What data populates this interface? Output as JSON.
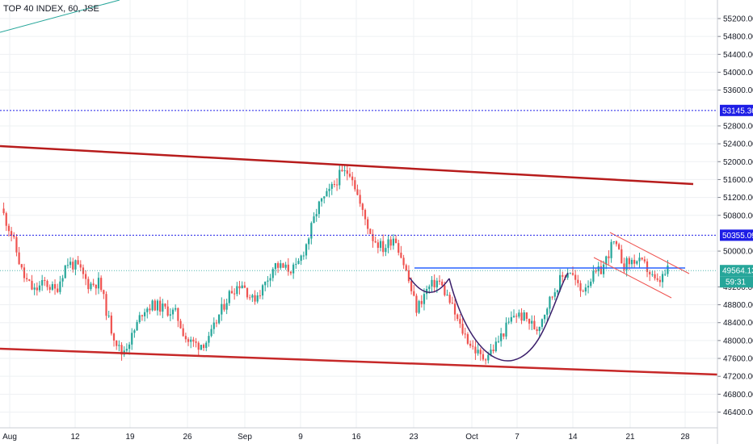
{
  "chart_data": {
    "type": "candlestick",
    "title": "TOP 40 INDEX, 60, JSE",
    "x_tick_labels": [
      "Aug",
      "12",
      "19",
      "26",
      "Sep",
      "9",
      "16",
      "23",
      "Oct",
      "7",
      "14",
      "21",
      "28"
    ],
    "y_tick_labels": [
      "55200.00",
      "54800.00",
      "54400.00",
      "54000.00",
      "53600.00",
      "52800.00",
      "52400.00",
      "52000.00",
      "51600.00",
      "51200.00",
      "50800.00",
      "50000.00",
      "49200.00",
      "48800.00",
      "48400.00",
      "48000.00",
      "47600.00",
      "47200.00",
      "46800.00",
      "46400.00"
    ],
    "ylim": [
      46100,
      55350
    ],
    "grid": true,
    "price_labels": [
      {
        "text": "53145.36",
        "value": 53145.36,
        "kind": "horizontal-line",
        "color": "#1e1ee6"
      },
      {
        "text": "50355.09",
        "value": 50355.09,
        "kind": "horizontal-line",
        "color": "#1e1ee6"
      },
      {
        "text": "49564.13",
        "value": 49564.13,
        "kind": "last-price",
        "color": "#26a69a"
      }
    ],
    "countdown_label": "59:31",
    "colors": {
      "up": "#26a69a",
      "down": "#ef5350",
      "trend_lines": "#b71c1c",
      "cup_curve": "#3b1f6b",
      "neckline": "#2962ff",
      "flag_lines": "#ef5350",
      "hline": "#1e1ee6"
    },
    "price_path": [
      {
        "date": "Aug 1",
        "close": 50950
      },
      {
        "date": "Aug 2",
        "close": 50350
      },
      {
        "date": "Aug 5",
        "close": 49450
      },
      {
        "date": "Aug 6",
        "close": 49100
      },
      {
        "date": "Aug 7",
        "close": 49300
      },
      {
        "date": "Aug 8",
        "close": 49100
      },
      {
        "date": "Aug 9",
        "close": 49750
      },
      {
        "date": "Aug 12",
        "close": 49650
      },
      {
        "date": "Aug 13",
        "close": 49250
      },
      {
        "date": "Aug 14",
        "close": 49300
      },
      {
        "date": "Aug 15",
        "close": 48300
      },
      {
        "date": "Aug 16",
        "close": 47700
      },
      {
        "date": "Aug 19",
        "close": 48100
      },
      {
        "date": "Aug 20",
        "close": 48700
      },
      {
        "date": "Aug 21",
        "close": 48800
      },
      {
        "date": "Aug 22",
        "close": 48700
      },
      {
        "date": "Aug 23",
        "close": 48600
      },
      {
        "date": "Aug 26",
        "close": 48000
      },
      {
        "date": "Aug 27",
        "close": 47900
      },
      {
        "date": "Aug 28",
        "close": 48000
      },
      {
        "date": "Aug 29",
        "close": 48600
      },
      {
        "date": "Aug 30",
        "close": 49100
      },
      {
        "date": "Sep 2",
        "close": 49300
      },
      {
        "date": "Sep 3",
        "close": 48900
      },
      {
        "date": "Sep 4",
        "close": 49200
      },
      {
        "date": "Sep 5",
        "close": 49700
      },
      {
        "date": "Sep 6",
        "close": 49600
      },
      {
        "date": "Sep 9",
        "close": 49600
      },
      {
        "date": "Sep 10",
        "close": 50200
      },
      {
        "date": "Sep 11",
        "close": 51000
      },
      {
        "date": "Sep 12",
        "close": 51300
      },
      {
        "date": "Sep 13",
        "close": 51700
      },
      {
        "date": "Sep 16",
        "close": 51800
      },
      {
        "date": "Sep 17",
        "close": 50900
      },
      {
        "date": "Sep 18",
        "close": 50300
      },
      {
        "date": "Sep 19",
        "close": 50050
      },
      {
        "date": "Sep 20",
        "close": 50350
      },
      {
        "date": "Sep 23",
        "close": 49600
      },
      {
        "date": "Sep 24",
        "close": 48700
      },
      {
        "date": "Sep 25",
        "close": 49150
      },
      {
        "date": "Sep 26",
        "close": 49350
      },
      {
        "date": "Sep 27",
        "close": 48900
      },
      {
        "date": "Sep 30",
        "close": 48300
      },
      {
        "date": "Oct 1",
        "close": 47900
      },
      {
        "date": "Oct 2",
        "close": 47600
      },
      {
        "date": "Oct 3",
        "close": 47800
      },
      {
        "date": "Oct 4",
        "close": 48200
      },
      {
        "date": "Oct 7",
        "close": 48600
      },
      {
        "date": "Oct 8",
        "close": 48500
      },
      {
        "date": "Oct 9",
        "close": 48250
      },
      {
        "date": "Oct 10",
        "close": 48800
      },
      {
        "date": "Oct 11",
        "close": 49300
      },
      {
        "date": "Oct 14",
        "close": 49600
      },
      {
        "date": "Oct 15",
        "close": 49100
      },
      {
        "date": "Oct 16",
        "close": 49400
      },
      {
        "date": "Oct 17",
        "close": 49600
      },
      {
        "date": "Oct 18",
        "close": 50200
      },
      {
        "date": "Oct 21",
        "close": 49700
      },
      {
        "date": "Oct 22",
        "close": 49800
      },
      {
        "date": "Oct 23",
        "close": 49650
      },
      {
        "date": "Oct 24",
        "close": 49250
      },
      {
        "date": "Oct 25",
        "close": 49560
      }
    ]
  }
}
